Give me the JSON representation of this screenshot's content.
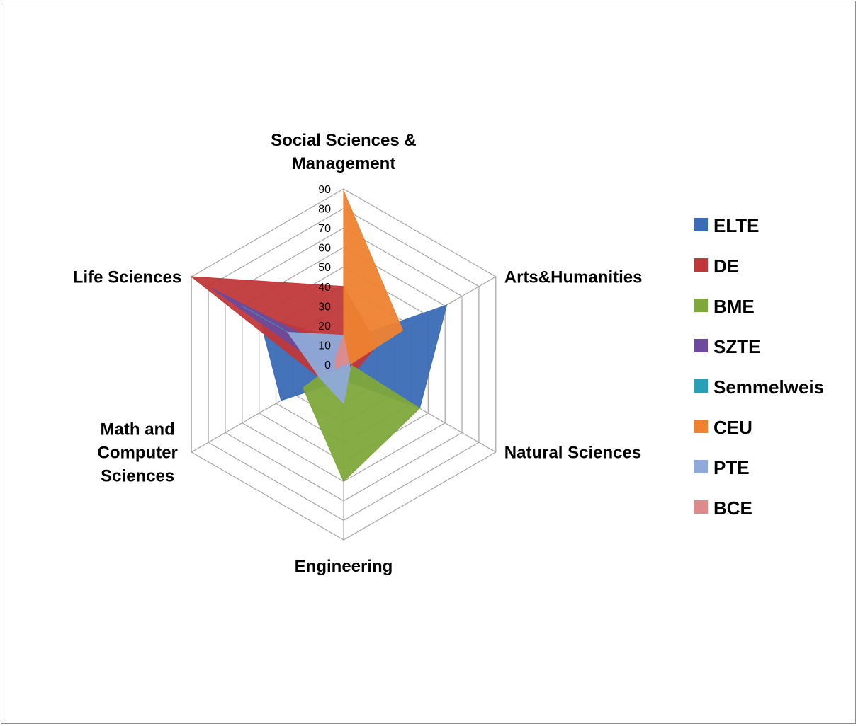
{
  "chart_data": {
    "type": "radar",
    "title": "",
    "categories": [
      "Social Sciences & Management",
      "Arts&Humanities",
      "Natural Sciences",
      "Engineering",
      "Math and Computer Sciences",
      "Life Sciences"
    ],
    "category_label_lines": [
      [
        "Social Sciences &",
        "Management"
      ],
      [
        "Arts&Humanities"
      ],
      [
        "Natural Sciences"
      ],
      [
        "Engineering"
      ],
      [
        "Math and",
        "Computer",
        "Sciences"
      ],
      [
        "Life Sciences"
      ]
    ],
    "rlim": [
      0,
      90
    ],
    "ticks": [
      0,
      10,
      20,
      30,
      40,
      50,
      60,
      70,
      80,
      90
    ],
    "tick_labels": [
      "0",
      "10",
      "20",
      "30",
      "40",
      "50",
      "60",
      "70",
      "80",
      "90"
    ],
    "grid": true,
    "filled": true,
    "legend_position": "right",
    "series": [
      {
        "name": "ELTE",
        "color": "#3a6cb5",
        "values": [
          12,
          61,
          45,
          8,
          37,
          50
        ]
      },
      {
        "name": "DE",
        "color": "#c0383a",
        "values": [
          40,
          20,
          7,
          3,
          14,
          90
        ]
      },
      {
        "name": "BME",
        "color": "#7fa83b",
        "values": [
          2,
          2,
          45,
          60,
          24,
          3
        ]
      },
      {
        "name": "SZTE",
        "color": "#6d4a9b",
        "values": [
          5,
          5,
          4,
          2,
          8,
          78
        ]
      },
      {
        "name": "Semmelweis",
        "color": "#2aa0b8",
        "values": [
          0,
          0,
          1,
          0,
          0,
          60
        ]
      },
      {
        "name": "CEU",
        "color": "#ee8230",
        "values": [
          89,
          35,
          2,
          0,
          0,
          0
        ]
      },
      {
        "name": "PTE",
        "color": "#8faad8",
        "values": [
          15,
          3,
          4,
          20,
          14,
          33
        ]
      },
      {
        "name": "BCE",
        "color": "#dd8a8a",
        "values": [
          15,
          3,
          1,
          0,
          5,
          5
        ]
      }
    ]
  }
}
